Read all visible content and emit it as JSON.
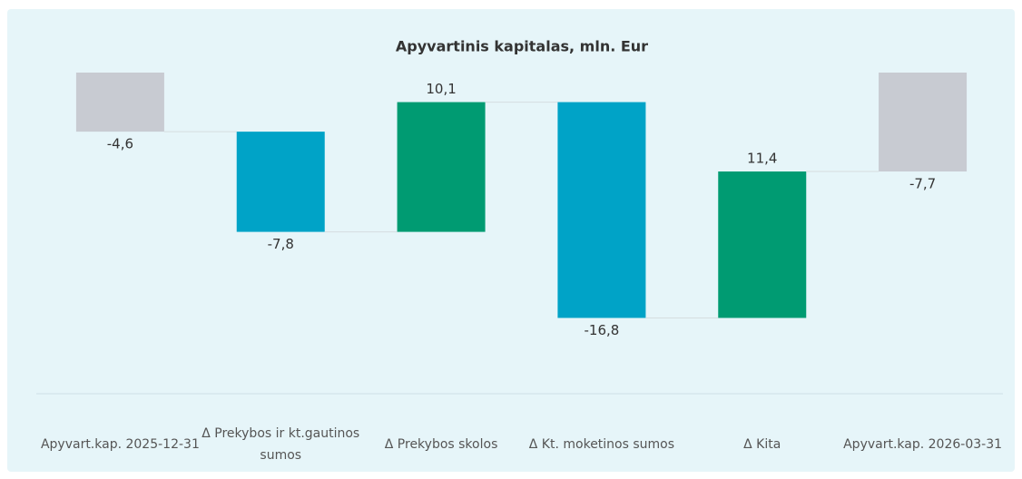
{
  "chart_data": {
    "type": "waterfall",
    "title": "Apyvartinis kapitalas, mln. Eur",
    "categories": [
      "Apyvart.kap. 2025-12-31",
      "Δ Prekybos ir kt.gautinos sumos",
      "Δ Prekybos skolos",
      "Δ Kt. moketinos sumos",
      "Δ Kita",
      "Apyvart.kap. 2026-03-31"
    ],
    "values": [
      -4.6,
      -7.8,
      10.1,
      -16.8,
      11.4,
      -7.7
    ],
    "value_labels": [
      "-4,6",
      "-7,8",
      "10,1",
      "-16,8",
      "11,4",
      "-7,7"
    ],
    "measure": [
      "absolute",
      "relative",
      "relative",
      "relative",
      "relative",
      "total"
    ],
    "colors": [
      "#c8cbd2",
      "#00a3c7",
      "#009b72",
      "#00a3c7",
      "#009b72",
      "#c8cbd2"
    ],
    "ylim": [
      -25,
      0
    ]
  }
}
